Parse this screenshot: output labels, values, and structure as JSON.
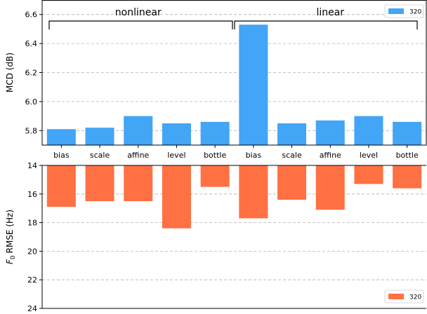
{
  "chart_data": [
    {
      "type": "bar",
      "categories": [
        "bias",
        "scale",
        "affine",
        "level",
        "bottle",
        "bias",
        "scale",
        "affine",
        "level",
        "bottle"
      ],
      "series": [
        {
          "name": "320",
          "color": "#42a5f5",
          "values": [
            5.81,
            5.82,
            5.9,
            5.85,
            5.86,
            6.53,
            5.85,
            5.87,
            5.9,
            5.86
          ]
        }
      ],
      "ylabel": "MCD (dB)",
      "ylim": [
        5.7,
        6.7
      ],
      "yticks": [
        "5.8",
        "6.0",
        "6.2",
        "6.4",
        "6.6"
      ],
      "grid": true,
      "legend": "top-right",
      "groups": [
        {
          "label": "nonlinear",
          "span": [
            0,
            4
          ]
        },
        {
          "label": "linear",
          "span": [
            5,
            9
          ]
        }
      ]
    },
    {
      "type": "bar",
      "categories": [
        "bias",
        "scale",
        "affine",
        "level",
        "bottle",
        "bias",
        "scale",
        "affine",
        "level",
        "bottle"
      ],
      "series": [
        {
          "name": "320",
          "color": "#ff7043",
          "values": [
            16.9,
            16.5,
            16.5,
            18.4,
            15.5,
            17.7,
            16.4,
            17.1,
            15.3,
            15.6
          ]
        }
      ],
      "ylabel": "F0 RMSE (Hz)",
      "ylim": [
        24,
        14
      ],
      "inverted": true,
      "yticks": [
        "14",
        "16",
        "18",
        "20",
        "22",
        "24"
      ],
      "grid": true,
      "legend": "bottom-right"
    }
  ]
}
